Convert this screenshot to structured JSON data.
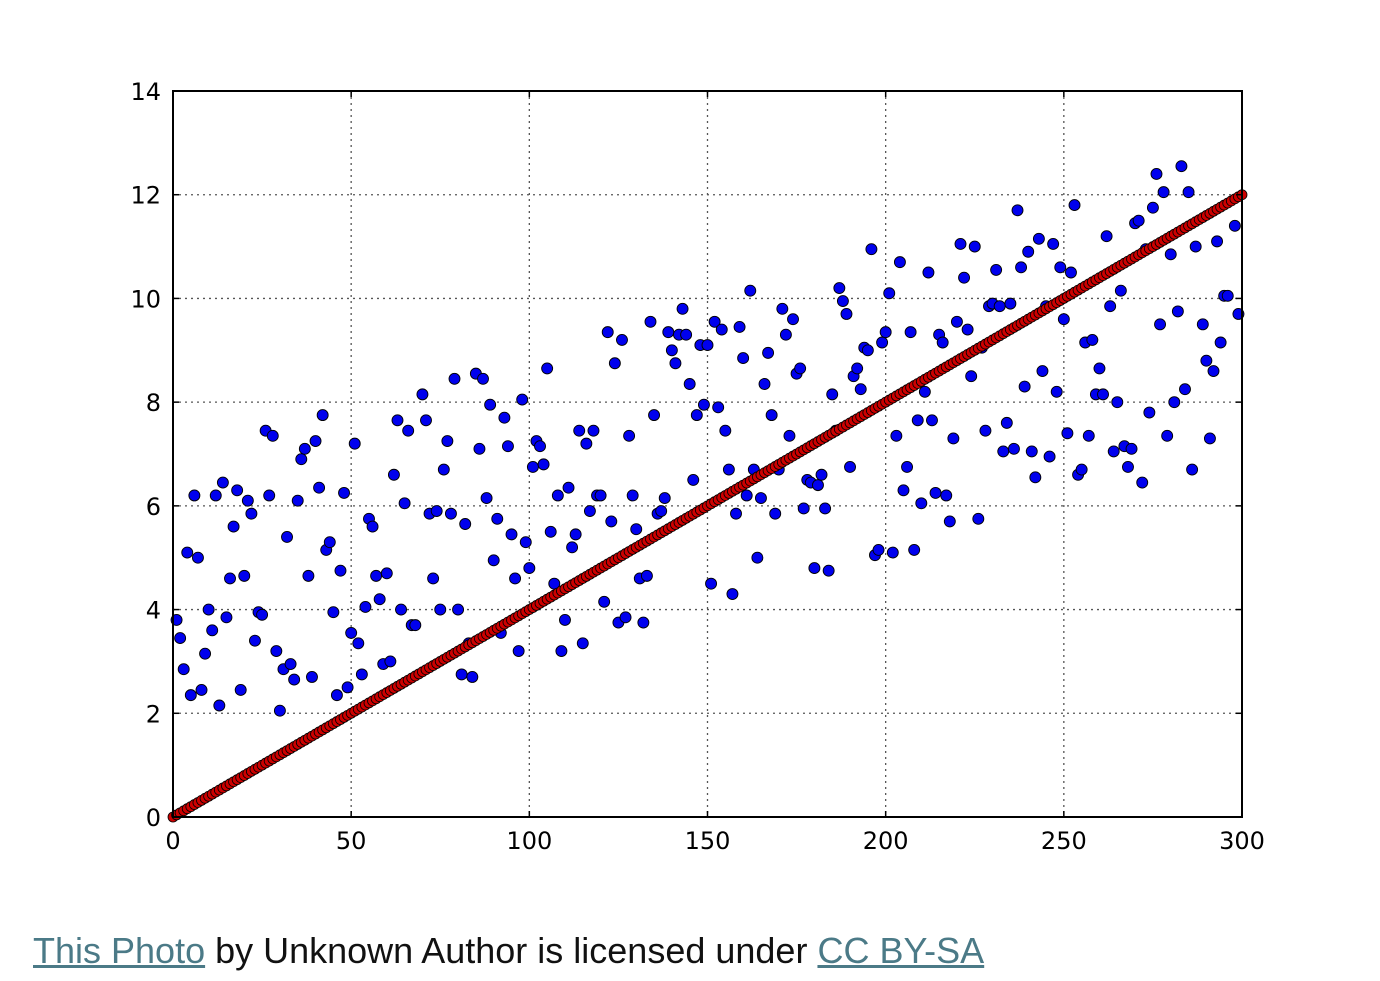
{
  "chart_data": {
    "type": "scatter",
    "title": "",
    "xlabel": "",
    "ylabel": "",
    "xlim": [
      0,
      300
    ],
    "ylim": [
      0,
      14
    ],
    "x_ticks": [
      "0",
      "50",
      "100",
      "150",
      "200",
      "250",
      "300"
    ],
    "y_ticks": [
      "0",
      "2",
      "4",
      "6",
      "8",
      "10",
      "12",
      "14"
    ],
    "grid": true,
    "series": [
      {
        "color": "#0000ee",
        "points": [
          [
            1,
            3.8
          ],
          [
            2,
            3.45
          ],
          [
            3,
            2.85
          ],
          [
            4,
            5.1
          ],
          [
            5,
            2.35
          ],
          [
            6,
            6.2
          ],
          [
            7,
            5.0
          ],
          [
            8,
            2.45
          ],
          [
            9,
            3.15
          ],
          [
            10,
            4.0
          ],
          [
            11,
            3.6
          ],
          [
            12,
            6.2
          ],
          [
            13,
            2.15
          ],
          [
            14,
            6.45
          ],
          [
            15,
            3.85
          ],
          [
            16,
            4.6
          ],
          [
            17,
            5.6
          ],
          [
            18,
            6.3
          ],
          [
            19,
            2.45
          ],
          [
            20,
            4.65
          ],
          [
            21,
            6.1
          ],
          [
            22,
            5.85
          ],
          [
            23,
            3.4
          ],
          [
            24,
            3.95
          ],
          [
            25,
            3.9
          ],
          [
            26,
            7.45
          ],
          [
            27,
            6.2
          ],
          [
            28,
            7.35
          ],
          [
            29,
            3.2
          ],
          [
            30,
            2.05
          ],
          [
            31,
            2.85
          ],
          [
            32,
            5.4
          ],
          [
            33,
            2.95
          ],
          [
            34,
            2.65
          ],
          [
            35,
            6.1
          ],
          [
            36,
            6.9
          ],
          [
            37,
            7.1
          ],
          [
            38,
            4.65
          ],
          [
            39,
            2.7
          ],
          [
            40,
            7.25
          ],
          [
            41,
            6.35
          ],
          [
            42,
            7.75
          ],
          [
            43,
            5.15
          ],
          [
            44,
            5.3
          ],
          [
            45,
            3.95
          ],
          [
            46,
            2.35
          ],
          [
            47,
            4.75
          ],
          [
            48,
            6.25
          ],
          [
            49,
            2.5
          ],
          [
            50,
            3.55
          ],
          [
            51,
            7.2
          ],
          [
            52,
            3.35
          ],
          [
            53,
            2.75
          ],
          [
            54,
            4.05
          ],
          [
            55,
            5.75
          ],
          [
            56,
            5.6
          ],
          [
            57,
            4.65
          ],
          [
            58,
            4.2
          ],
          [
            59,
            2.95
          ],
          [
            60,
            4.7
          ],
          [
            61,
            3.0
          ],
          [
            62,
            6.6
          ],
          [
            63,
            7.65
          ],
          [
            64,
            4.0
          ],
          [
            65,
            6.05
          ],
          [
            66,
            7.45
          ],
          [
            67,
            3.7
          ],
          [
            68,
            3.7
          ],
          [
            70,
            8.15
          ],
          [
            71,
            7.65
          ],
          [
            72,
            5.85
          ],
          [
            73,
            4.6
          ],
          [
            74,
            5.9
          ],
          [
            75,
            4.0
          ],
          [
            76,
            6.7
          ],
          [
            77,
            7.25
          ],
          [
            78,
            5.85
          ],
          [
            79,
            8.45
          ],
          [
            80,
            4.0
          ],
          [
            81,
            2.75
          ],
          [
            82,
            5.65
          ],
          [
            83,
            3.35
          ],
          [
            84,
            2.7
          ],
          [
            85,
            8.55
          ],
          [
            86,
            7.1
          ],
          [
            87,
            8.45
          ],
          [
            88,
            6.15
          ],
          [
            89,
            7.95
          ],
          [
            90,
            4.95
          ],
          [
            91,
            5.75
          ],
          [
            92,
            3.55
          ],
          [
            93,
            7.7
          ],
          [
            94,
            7.15
          ],
          [
            95,
            5.45
          ],
          [
            96,
            4.6
          ],
          [
            97,
            3.2
          ],
          [
            98,
            8.05
          ],
          [
            99,
            5.3
          ],
          [
            100,
            4.8
          ],
          [
            101,
            6.75
          ],
          [
            102,
            7.25
          ],
          [
            103,
            7.15
          ],
          [
            104,
            6.8
          ],
          [
            105,
            8.65
          ],
          [
            106,
            5.5
          ],
          [
            107,
            4.5
          ],
          [
            108,
            6.2
          ],
          [
            109,
            3.2
          ],
          [
            110,
            3.8
          ],
          [
            111,
            6.35
          ],
          [
            112,
            5.2
          ],
          [
            113,
            5.45
          ],
          [
            114,
            7.45
          ],
          [
            115,
            3.35
          ],
          [
            116,
            7.2
          ],
          [
            117,
            5.9
          ],
          [
            118,
            7.45
          ],
          [
            119,
            6.2
          ],
          [
            120,
            6.2
          ],
          [
            121,
            4.15
          ],
          [
            122,
            9.35
          ],
          [
            123,
            5.7
          ],
          [
            124,
            8.75
          ],
          [
            125,
            3.75
          ],
          [
            126,
            9.2
          ],
          [
            127,
            3.85
          ],
          [
            128,
            7.35
          ],
          [
            129,
            6.2
          ],
          [
            130,
            5.55
          ],
          [
            131,
            4.6
          ],
          [
            132,
            3.75
          ],
          [
            133,
            4.65
          ],
          [
            134,
            9.55
          ],
          [
            135,
            7.75
          ],
          [
            136,
            5.85
          ],
          [
            137,
            5.9
          ],
          [
            138,
            6.15
          ],
          [
            139,
            9.35
          ],
          [
            140,
            9.0
          ],
          [
            141,
            8.75
          ],
          [
            142,
            9.3
          ],
          [
            143,
            9.8
          ],
          [
            144,
            9.3
          ],
          [
            145,
            8.35
          ],
          [
            146,
            6.5
          ],
          [
            147,
            7.75
          ],
          [
            148,
            9.1
          ],
          [
            149,
            7.95
          ],
          [
            150,
            9.1
          ],
          [
            151,
            4.5
          ],
          [
            152,
            9.55
          ],
          [
            153,
            7.9
          ],
          [
            154,
            9.4
          ],
          [
            155,
            7.45
          ],
          [
            156,
            6.7
          ],
          [
            157,
            4.3
          ],
          [
            158,
            5.85
          ],
          [
            159,
            9.45
          ],
          [
            160,
            8.85
          ],
          [
            161,
            6.2
          ],
          [
            162,
            10.15
          ],
          [
            163,
            6.7
          ],
          [
            164,
            5.0
          ],
          [
            165,
            6.15
          ],
          [
            166,
            8.35
          ],
          [
            167,
            8.95
          ],
          [
            168,
            7.75
          ],
          [
            169,
            5.85
          ],
          [
            170,
            6.7
          ],
          [
            171,
            9.8
          ],
          [
            172,
            9.3
          ],
          [
            173,
            7.35
          ],
          [
            174,
            9.6
          ],
          [
            175,
            8.55
          ],
          [
            176,
            8.65
          ],
          [
            177,
            5.95
          ],
          [
            178,
            6.5
          ],
          [
            179,
            6.45
          ],
          [
            180,
            4.8
          ],
          [
            181,
            6.4
          ],
          [
            182,
            6.6
          ],
          [
            183,
            5.95
          ],
          [
            184,
            4.75
          ],
          [
            185,
            8.15
          ],
          [
            186,
            7.45
          ],
          [
            187,
            10.2
          ],
          [
            188,
            9.95
          ],
          [
            189,
            9.7
          ],
          [
            190,
            6.75
          ],
          [
            191,
            8.5
          ],
          [
            192,
            8.65
          ],
          [
            193,
            8.25
          ],
          [
            194,
            9.05
          ],
          [
            195,
            9.0
          ],
          [
            196,
            10.95
          ],
          [
            197,
            5.05
          ],
          [
            198,
            5.15
          ],
          [
            199,
            9.15
          ],
          [
            200,
            9.35
          ],
          [
            201,
            10.1
          ],
          [
            202,
            5.1
          ],
          [
            203,
            7.35
          ],
          [
            204,
            10.7
          ],
          [
            205,
            6.3
          ],
          [
            206,
            6.75
          ],
          [
            207,
            9.35
          ],
          [
            208,
            5.15
          ],
          [
            209,
            7.65
          ],
          [
            210,
            6.05
          ],
          [
            211,
            8.2
          ],
          [
            212,
            10.5
          ],
          [
            213,
            7.65
          ],
          [
            214,
            6.25
          ],
          [
            215,
            9.3
          ],
          [
            216,
            9.15
          ],
          [
            217,
            6.2
          ],
          [
            218,
            5.7
          ],
          [
            219,
            7.3
          ],
          [
            220,
            9.55
          ],
          [
            221,
            11.05
          ],
          [
            222,
            10.4
          ],
          [
            223,
            9.4
          ],
          [
            224,
            8.5
          ],
          [
            225,
            11.0
          ],
          [
            226,
            5.75
          ],
          [
            227,
            9.05
          ],
          [
            228,
            7.45
          ],
          [
            229,
            9.85
          ],
          [
            230,
            9.9
          ],
          [
            231,
            10.55
          ],
          [
            232,
            9.85
          ],
          [
            233,
            7.05
          ],
          [
            234,
            7.6
          ],
          [
            235,
            9.9
          ],
          [
            236,
            7.1
          ],
          [
            237,
            11.7
          ],
          [
            238,
            10.6
          ],
          [
            239,
            8.3
          ],
          [
            240,
            10.9
          ],
          [
            241,
            7.05
          ],
          [
            242,
            6.55
          ],
          [
            243,
            11.15
          ],
          [
            244,
            8.6
          ],
          [
            245,
            9.85
          ],
          [
            246,
            6.95
          ],
          [
            247,
            11.05
          ],
          [
            248,
            8.2
          ],
          [
            249,
            10.6
          ],
          [
            250,
            9.6
          ],
          [
            251,
            7.4
          ],
          [
            252,
            10.5
          ],
          [
            253,
            11.8
          ],
          [
            254,
            6.6
          ],
          [
            255,
            6.7
          ],
          [
            256,
            9.15
          ],
          [
            257,
            7.35
          ],
          [
            258,
            9.2
          ],
          [
            259,
            8.15
          ],
          [
            260,
            8.65
          ],
          [
            261,
            8.15
          ],
          [
            262,
            11.2
          ],
          [
            263,
            9.85
          ],
          [
            264,
            7.05
          ],
          [
            265,
            8.0
          ],
          [
            266,
            10.15
          ],
          [
            267,
            7.15
          ],
          [
            268,
            6.75
          ],
          [
            269,
            7.1
          ],
          [
            270,
            11.45
          ],
          [
            271,
            11.5
          ],
          [
            272,
            6.45
          ],
          [
            273,
            10.95
          ],
          [
            274,
            7.8
          ],
          [
            275,
            11.75
          ],
          [
            276,
            12.4
          ],
          [
            277,
            9.5
          ],
          [
            278,
            12.05
          ],
          [
            279,
            7.35
          ],
          [
            280,
            10.85
          ],
          [
            281,
            8.0
          ],
          [
            282,
            9.75
          ],
          [
            283,
            12.55
          ],
          [
            284,
            8.25
          ],
          [
            285,
            12.05
          ],
          [
            286,
            6.7
          ],
          [
            287,
            11.0
          ],
          [
            289,
            9.5
          ],
          [
            290,
            8.8
          ],
          [
            291,
            7.3
          ],
          [
            292,
            8.6
          ],
          [
            293,
            11.1
          ],
          [
            294,
            9.15
          ],
          [
            295,
            10.05
          ],
          [
            296,
            10.05
          ],
          [
            298,
            11.4
          ],
          [
            299,
            9.7
          ]
        ]
      },
      {
        "color": "#cc0000",
        "line_fit": {
          "slope": 0.04,
          "intercept": 0,
          "x_start": 0,
          "x_end": 300,
          "n_points": 300
        }
      }
    ]
  },
  "caption": {
    "link1": "This Photo",
    "middle": " by Unknown Author is licensed under ",
    "link2": "CC BY-SA"
  }
}
